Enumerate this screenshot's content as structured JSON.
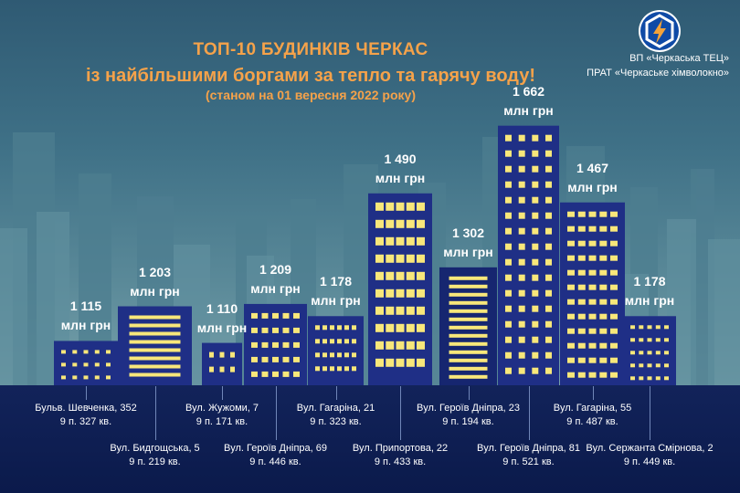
{
  "header": {
    "title_line1": "ТОП-10 БУДИНКІВ ЧЕРКАС",
    "title_line2": "із найбільшими боргами за тепло та гарячу воду!",
    "title_line3": "(станом на 01 вересня 2022 року)"
  },
  "org": {
    "line1": "ВП «Черкаська ТЕЦ»",
    "line2": "ПРАТ «Черкаське хімволокно»",
    "logo_icon": "tec-lightning-hexagon-icon",
    "logo_colors": [
      "#0f4aa6",
      "#f2a23a",
      "#ffffff"
    ]
  },
  "colors": {
    "title": "#f5a24a",
    "building": "#1f2f86",
    "building_alt": "#162670",
    "window": "#f8e77a",
    "base_band": "#0b1a4b",
    "sky_top": "#2f5a73",
    "sky_bottom": "#86aeb5"
  },
  "chart_data": {
    "type": "bar",
    "title": "ТОП-10 БУДИНКІВ ЧЕРКАС",
    "subtitle": "із найбільшими боргами за тепло та гарячу воду! (станом на 01 вересня 2022 року)",
    "unit": "млн грн",
    "categories": [
      "Бульв. Шевченка, 352",
      "Вул. Бидгощська, 5",
      "Вул. Жужоми, 7",
      "Вул. Героїв Дніпра, 69",
      "Вул. Гагаріна, 21",
      "Вул. Припортова, 22",
      "Вул. Героїв Дніпра, 23",
      "Вул. Героїв Дніпра, 81",
      "Вул. Гагаріна, 55",
      "Вул. Сержанта Смірнова, 2"
    ],
    "details": [
      "9 п. 327 кв.",
      "9 п. 219 кв.",
      "9 п. 171 кв.",
      "9 п. 446 кв.",
      "9 п. 323 кв.",
      "9 п. 433 кв.",
      "9 п. 194 кв.",
      "9 п. 521 кв.",
      "9 п. 487 кв.",
      "9 п. 449 кв."
    ],
    "values": [
      1.115,
      1.203,
      1.11,
      1.209,
      1.178,
      1.49,
      1.302,
      1.662,
      1.467,
      1.178
    ],
    "value_labels": [
      "1 115",
      "1 203",
      "1 110",
      "1 209",
      "1 178",
      "1 490",
      "1 302",
      "1 662",
      "1 467",
      "1 178"
    ]
  }
}
